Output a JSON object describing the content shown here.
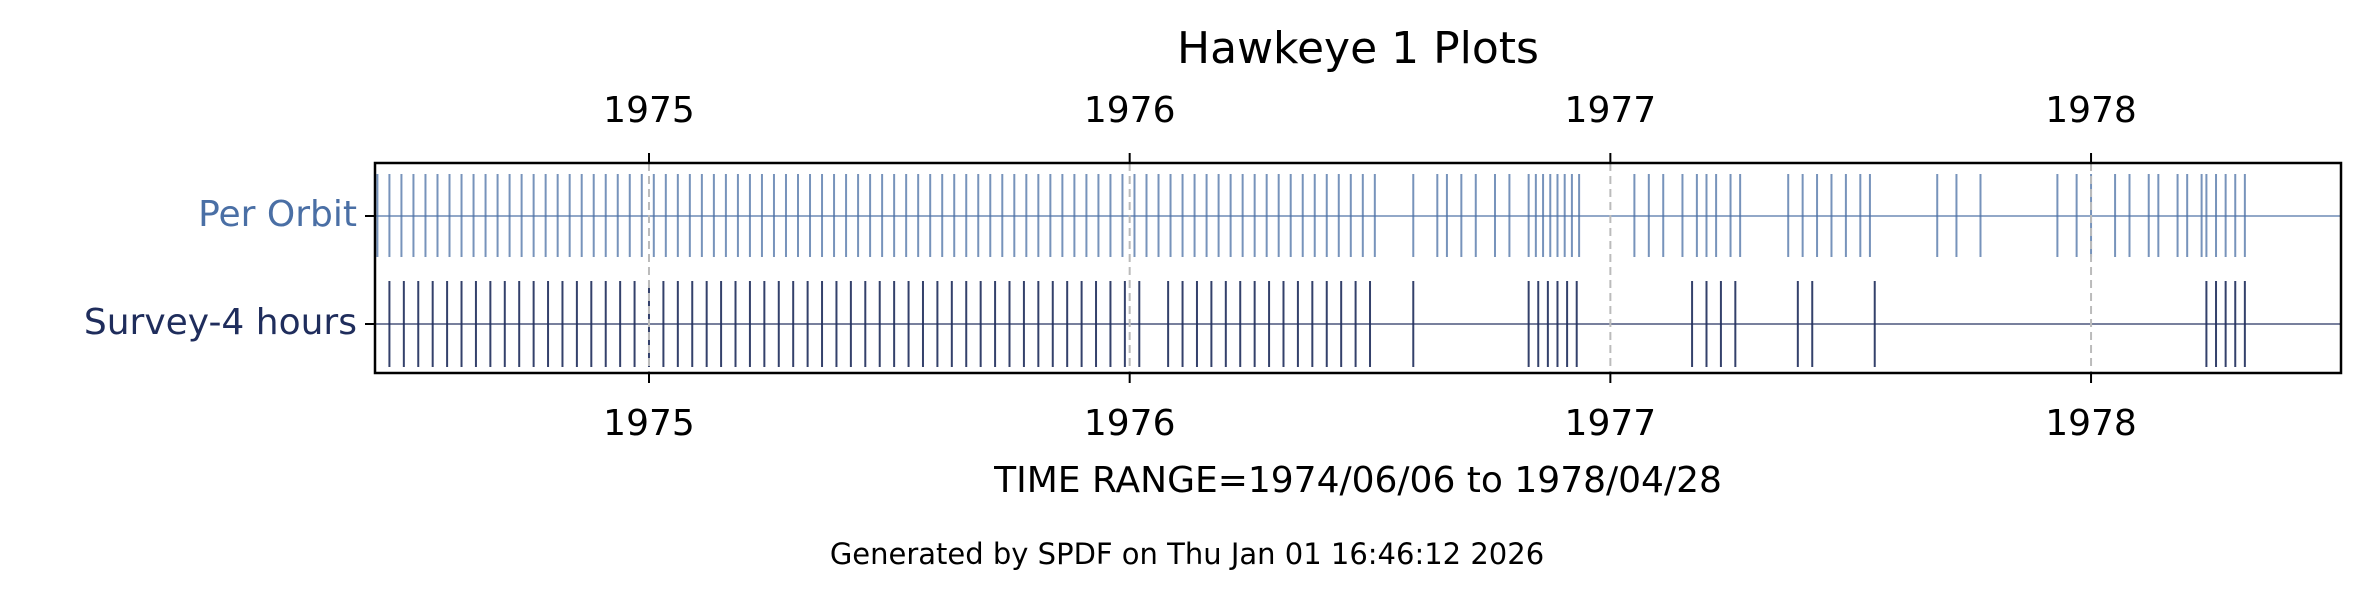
{
  "chart_data": {
    "type": "event",
    "title": "Hawkeye 1 Plots",
    "xlabel": "TIME RANGE=1974/06/06 to 1978/04/28",
    "footer": "Generated by SPDF on Thu Jan 01 16:46:12 2026",
    "xlim": [
      1974.43,
      1978.52
    ],
    "xticks": [
      1975,
      1976,
      1977,
      1978
    ],
    "grid": true,
    "series": [
      {
        "name": "Per Orbit",
        "color": "#4a6fa5",
        "x": [
          1974.435,
          1974.46,
          1974.485,
          1974.51,
          1974.535,
          1974.56,
          1974.585,
          1974.61,
          1974.635,
          1974.66,
          1974.685,
          1974.71,
          1974.735,
          1974.76,
          1974.785,
          1974.81,
          1974.835,
          1974.86,
          1974.885,
          1974.91,
          1974.935,
          1974.96,
          1974.985,
          1975.01,
          1975.035,
          1975.06,
          1975.085,
          1975.11,
          1975.135,
          1975.16,
          1975.185,
          1975.21,
          1975.235,
          1975.26,
          1975.285,
          1975.31,
          1975.335,
          1975.36,
          1975.385,
          1975.41,
          1975.435,
          1975.46,
          1975.485,
          1975.51,
          1975.535,
          1975.56,
          1975.585,
          1975.61,
          1975.635,
          1975.66,
          1975.685,
          1975.71,
          1975.735,
          1975.76,
          1975.785,
          1975.81,
          1975.835,
          1975.86,
          1975.885,
          1975.91,
          1975.935,
          1975.96,
          1975.985,
          1976.01,
          1976.035,
          1976.06,
          1976.085,
          1976.11,
          1976.135,
          1976.16,
          1976.185,
          1976.21,
          1976.235,
          1976.26,
          1976.285,
          1976.31,
          1976.335,
          1976.36,
          1976.385,
          1976.41,
          1976.435,
          1976.46,
          1976.485,
          1976.51,
          1976.59,
          1976.64,
          1976.66,
          1976.69,
          1976.72,
          1976.76,
          1976.79,
          1976.83,
          1976.845,
          1976.86,
          1976.875,
          1976.89,
          1976.905,
          1976.92,
          1976.935,
          1977.05,
          1977.08,
          1977.11,
          1977.15,
          1977.18,
          1977.2,
          1977.22,
          1977.25,
          1977.27,
          1977.37,
          1977.4,
          1977.43,
          1977.46,
          1977.49,
          1977.52,
          1977.54,
          1977.68,
          1977.72,
          1977.77,
          1977.93,
          1977.97,
          1978.0,
          1978.05,
          1978.08,
          1978.12,
          1978.14,
          1978.18,
          1978.2,
          1978.23,
          1978.24,
          1978.26,
          1978.28,
          1978.3,
          1978.32
        ]
      },
      {
        "name": "Survey-4 hours",
        "color": "#1f2d5c",
        "x": [
          1974.46,
          1974.49,
          1974.52,
          1974.55,
          1974.58,
          1974.61,
          1974.64,
          1974.67,
          1974.7,
          1974.73,
          1974.76,
          1974.79,
          1974.82,
          1974.85,
          1974.88,
          1974.91,
          1974.94,
          1974.97,
          1975.0,
          1975.03,
          1975.06,
          1975.09,
          1975.12,
          1975.15,
          1975.18,
          1975.21,
          1975.24,
          1975.27,
          1975.3,
          1975.33,
          1975.36,
          1975.39,
          1975.42,
          1975.45,
          1975.48,
          1975.51,
          1975.54,
          1975.57,
          1975.6,
          1975.63,
          1975.66,
          1975.69,
          1975.72,
          1975.75,
          1975.78,
          1975.81,
          1975.84,
          1975.87,
          1975.9,
          1975.93,
          1975.96,
          1975.99,
          1976.02,
          1976.08,
          1976.11,
          1976.14,
          1976.17,
          1976.2,
          1976.23,
          1976.26,
          1976.29,
          1976.32,
          1976.35,
          1976.38,
          1976.41,
          1976.44,
          1976.47,
          1976.5,
          1976.59,
          1976.83,
          1976.85,
          1976.87,
          1976.89,
          1976.91,
          1976.93,
          1977.17,
          1977.2,
          1977.23,
          1977.26,
          1977.39,
          1977.42,
          1977.55,
          1978.24,
          1978.26,
          1978.28,
          1978.3,
          1978.32
        ]
      }
    ]
  }
}
